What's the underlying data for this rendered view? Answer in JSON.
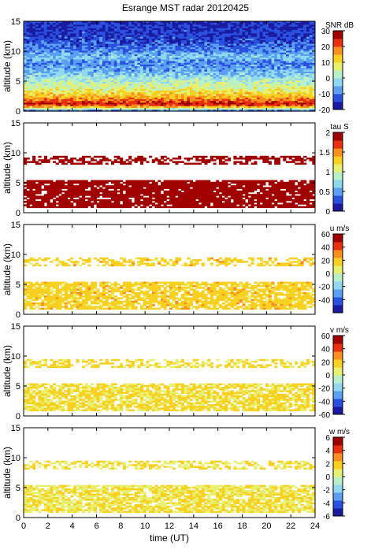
{
  "figure_title": "Esrange MST radar 20120425",
  "chart_data": [
    {
      "type": "heatmap",
      "cbar_label": "SNR dB",
      "ylabel": "altitude (km)",
      "xlim": [
        0,
        24
      ],
      "ylim": [
        0,
        15
      ],
      "yticks": [
        0,
        5,
        10,
        15
      ],
      "clim": [
        -20,
        30
      ],
      "cticks": [
        -20,
        -10,
        0,
        10,
        20,
        30
      ],
      "fill": "full",
      "profile": [
        {
          "alt": 0,
          "value": -15
        },
        {
          "alt": 0.5,
          "value": 8
        },
        {
          "alt": 1.2,
          "value": 26
        },
        {
          "alt": 2,
          "value": 18
        },
        {
          "alt": 3.5,
          "value": 8
        },
        {
          "alt": 5,
          "value": 2
        },
        {
          "alt": 6.5,
          "value": -5
        },
        {
          "alt": 8,
          "value": -10
        },
        {
          "alt": 9,
          "value": -4
        },
        {
          "alt": 10,
          "value": -9
        },
        {
          "alt": 12,
          "value": -14
        },
        {
          "alt": 15,
          "value": -16
        }
      ]
    },
    {
      "type": "heatmap",
      "cbar_label": "tau S",
      "ylabel": "altitude (km)",
      "xlim": [
        0,
        24
      ],
      "ylim": [
        0,
        15
      ],
      "yticks": [
        0,
        5,
        10,
        15
      ],
      "clim": [
        0,
        2
      ],
      "cticks": [
        0,
        0.5,
        1,
        1.5,
        2
      ],
      "fill": "sparse",
      "typical_value": 1.95,
      "layers": [
        {
          "alt_min": 1,
          "alt_max": 5.5,
          "density": 0.85
        },
        {
          "alt_min": 8.2,
          "alt_max": 9.6,
          "density": 0.55
        }
      ]
    },
    {
      "type": "heatmap",
      "cbar_label": "u m/s",
      "ylabel": "altitude (km)",
      "xlim": [
        0,
        24
      ],
      "ylim": [
        0,
        15
      ],
      "yticks": [
        0,
        5,
        10,
        15
      ],
      "clim": [
        -60,
        60
      ],
      "cticks": [
        -40,
        -20,
        0,
        20,
        40,
        60
      ],
      "fill": "sparse",
      "typical_value": 18,
      "layers": [
        {
          "alt_min": 1,
          "alt_max": 5.5,
          "density": 0.8
        },
        {
          "alt_min": 8.2,
          "alt_max": 9.6,
          "density": 0.5
        }
      ]
    },
    {
      "type": "heatmap",
      "cbar_label": "v m/s",
      "ylabel": "altitude (km)",
      "xlim": [
        0,
        24
      ],
      "ylim": [
        0,
        15
      ],
      "yticks": [
        0,
        5,
        10,
        15
      ],
      "clim": [
        -60,
        60
      ],
      "cticks": [
        -60,
        -40,
        -20,
        0,
        20,
        40,
        60
      ],
      "fill": "sparse",
      "typical_value": 14,
      "layers": [
        {
          "alt_min": 1,
          "alt_max": 5.5,
          "density": 0.8
        },
        {
          "alt_min": 8.2,
          "alt_max": 9.6,
          "density": 0.5
        }
      ]
    },
    {
      "type": "heatmap",
      "cbar_label": "w m/s",
      "ylabel": "altitude (km)",
      "xlabel": "time (UT)",
      "xlim": [
        0,
        24
      ],
      "ylim": [
        0,
        15
      ],
      "yticks": [
        0,
        5,
        10,
        15
      ],
      "xticks": [
        0,
        2,
        4,
        6,
        8,
        10,
        12,
        14,
        16,
        18,
        20,
        22,
        24
      ],
      "clim": [
        -6,
        6
      ],
      "cticks": [
        -6,
        -4,
        -2,
        0,
        2,
        4,
        6
      ],
      "fill": "sparse",
      "typical_value": 1.2,
      "layers": [
        {
          "alt_min": 1,
          "alt_max": 5.5,
          "density": 0.8
        },
        {
          "alt_min": 8.2,
          "alt_max": 9.6,
          "density": 0.5
        }
      ]
    }
  ],
  "colormap": [
    "#1a1aa0",
    "#2a50e0",
    "#5aa0f0",
    "#8fd8f0",
    "#b8f0c8",
    "#e8f070",
    "#f8d020",
    "#f89020",
    "#e83010",
    "#a00000"
  ]
}
